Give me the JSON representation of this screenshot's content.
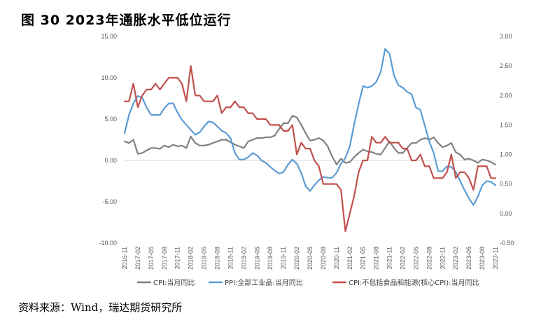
{
  "figure": {
    "title": "图 30   2023年通胀水平低位运行",
    "source": "资料来源：Wind，瑞达期货研究所"
  },
  "chart_data": {
    "type": "line",
    "x": [
      "2016-11",
      "2016-12",
      "2017-01",
      "2017-02",
      "2017-03",
      "2017-04",
      "2017-05",
      "2017-06",
      "2017-07",
      "2017-08",
      "2017-09",
      "2017-10",
      "2017-11",
      "2017-12",
      "2018-01",
      "2018-02",
      "2018-03",
      "2018-04",
      "2018-05",
      "2018-06",
      "2018-07",
      "2018-08",
      "2018-09",
      "2018-10",
      "2018-11",
      "2018-12",
      "2019-01",
      "2019-02",
      "2019-03",
      "2019-04",
      "2019-05",
      "2019-06",
      "2019-07",
      "2019-08",
      "2019-09",
      "2019-10",
      "2019-11",
      "2019-12",
      "2020-01",
      "2020-02",
      "2020-03",
      "2020-04",
      "2020-05",
      "2020-06",
      "2020-07",
      "2020-08",
      "2020-09",
      "2020-10",
      "2020-11",
      "2020-12",
      "2021-01",
      "2021-02",
      "2021-03",
      "2021-04",
      "2021-05",
      "2021-06",
      "2021-07",
      "2021-08",
      "2021-09",
      "2021-10",
      "2021-11",
      "2021-12",
      "2022-01",
      "2022-02",
      "2022-03",
      "2022-04",
      "2022-05",
      "2022-06",
      "2022-07",
      "2022-08",
      "2022-09",
      "2022-10",
      "2022-11",
      "2022-12",
      "2023-01",
      "2023-02",
      "2023-03",
      "2023-04",
      "2023-05",
      "2023-06",
      "2023-07",
      "2023-08",
      "2023-09",
      "2023-10",
      "2023-11"
    ],
    "x_tick_labels": [
      "2016-11",
      "2017-02",
      "2017-05",
      "2017-08",
      "2017-11",
      "2018-02",
      "2018-05",
      "2018-08",
      "2018-11",
      "2019-02",
      "2019-05",
      "2019-08",
      "2019-11",
      "2020-02",
      "2020-05",
      "2020-08",
      "2020-11",
      "2021-02",
      "2021-05",
      "2021-08",
      "2021-11",
      "2022-02",
      "2022-05",
      "2022-08",
      "2022-11",
      "2023-02",
      "2023-05",
      "2023-08",
      "2023-11"
    ],
    "y_left": {
      "range": [
        -10,
        15
      ],
      "ticks": [
        "15.00",
        "10.00",
        "5.00",
        "0.00",
        "-5.00",
        "-10.00"
      ]
    },
    "y_right": {
      "range": [
        -0.5,
        3
      ],
      "ticks": [
        "3.00",
        "2.50",
        "2.00",
        "1.50",
        "1.00",
        "0.50",
        "0.00",
        "-0.50"
      ]
    },
    "grid": false,
    "legend_position": "bottom",
    "series": [
      {
        "name": "CPI:当月同比",
        "axis": "left",
        "color": "#808080",
        "values": [
          2.3,
          2.1,
          2.5,
          0.8,
          0.9,
          1.2,
          1.5,
          1.5,
          1.4,
          1.8,
          1.6,
          1.9,
          1.7,
          1.8,
          1.5,
          2.9,
          2.1,
          1.8,
          1.8,
          1.9,
          2.1,
          2.3,
          2.5,
          2.5,
          2.2,
          1.9,
          1.7,
          1.5,
          2.3,
          2.5,
          2.7,
          2.7,
          2.8,
          2.8,
          3.0,
          3.8,
          4.5,
          4.5,
          5.4,
          5.2,
          4.3,
          3.3,
          2.4,
          2.5,
          2.7,
          2.4,
          1.7,
          0.5,
          -0.5,
          0.2,
          -0.3,
          -0.2,
          0.4,
          0.9,
          1.3,
          1.1,
          1.0,
          0.8,
          0.7,
          1.5,
          2.3,
          1.5,
          0.9,
          0.9,
          1.5,
          2.1,
          2.1,
          2.5,
          2.7,
          2.5,
          2.8,
          2.1,
          1.6,
          1.8,
          2.1,
          1.0,
          0.7,
          0.1,
          0.2,
          0.0,
          -0.3,
          0.1,
          0.0,
          -0.2,
          -0.5
        ]
      },
      {
        "name": "PPI:全部工业品:当月同比",
        "axis": "left",
        "color": "#5B9BD5",
        "values": [
          3.3,
          5.5,
          6.9,
          7.8,
          7.6,
          6.4,
          5.5,
          5.5,
          5.5,
          6.3,
          6.9,
          6.9,
          5.8,
          4.9,
          4.3,
          3.7,
          3.1,
          3.4,
          4.1,
          4.7,
          4.6,
          4.1,
          3.6,
          3.3,
          2.7,
          0.9,
          0.1,
          0.1,
          0.4,
          0.9,
          0.6,
          0.0,
          -0.3,
          -0.8,
          -1.2,
          -1.6,
          -1.4,
          -0.5,
          0.1,
          -0.4,
          -1.5,
          -3.1,
          -3.7,
          -3.0,
          -2.4,
          -2.0,
          -2.1,
          -2.1,
          -1.5,
          -0.4,
          0.3,
          1.7,
          4.4,
          6.8,
          9.0,
          8.8,
          9.0,
          9.5,
          10.7,
          13.5,
          12.9,
          10.3,
          9.1,
          8.8,
          8.3,
          8.0,
          6.4,
          6.1,
          4.2,
          2.3,
          0.9,
          -1.3,
          -1.3,
          -0.7,
          -0.8,
          -1.4,
          -2.5,
          -3.6,
          -4.6,
          -5.4,
          -4.4,
          -3.0,
          -2.5,
          -2.6,
          -3.0
        ]
      },
      {
        "name": "CPI:不包括食品和能源(核心CPI):当月同比",
        "axis": "right",
        "color": "#C0504D",
        "values": [
          1.9,
          1.9,
          2.2,
          1.8,
          2.0,
          2.1,
          2.1,
          2.2,
          2.1,
          2.2,
          2.3,
          2.3,
          2.3,
          2.2,
          1.9,
          2.5,
          2.0,
          2.0,
          1.9,
          1.9,
          1.9,
          2.0,
          1.7,
          1.8,
          1.8,
          1.9,
          1.8,
          1.8,
          1.7,
          1.7,
          1.6,
          1.6,
          1.6,
          1.5,
          1.5,
          1.5,
          1.4,
          1.4,
          1.5,
          1.0,
          1.2,
          1.1,
          1.1,
          0.9,
          0.8,
          0.5,
          0.5,
          0.5,
          0.5,
          0.4,
          -0.3,
          0.0,
          0.3,
          0.7,
          0.9,
          0.9,
          1.3,
          1.2,
          1.2,
          1.3,
          1.2,
          1.2,
          1.2,
          1.1,
          1.1,
          0.9,
          0.9,
          1.0,
          0.8,
          0.8,
          0.6,
          0.6,
          0.6,
          0.7,
          1.0,
          0.6,
          0.7,
          0.7,
          0.6,
          0.4,
          0.8,
          0.8,
          0.8,
          0.6,
          0.6
        ]
      }
    ]
  }
}
